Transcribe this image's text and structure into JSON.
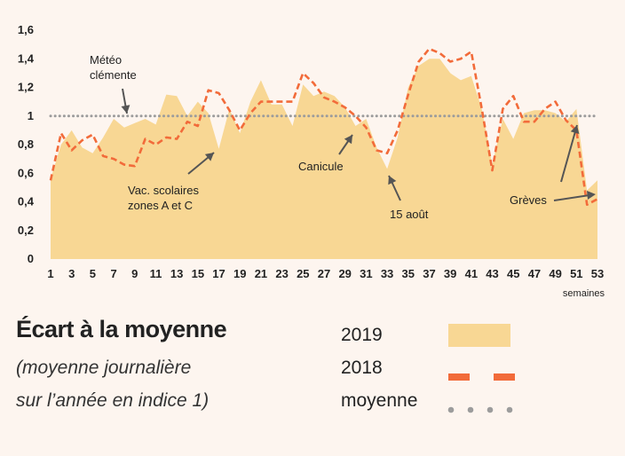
{
  "chart_data": {
    "type": "area",
    "xlabel": "semaines",
    "ylabel": "",
    "xlim": [
      1,
      53
    ],
    "ylim": [
      0,
      1.6
    ],
    "xticks": [
      "1",
      "3",
      "5",
      "7",
      "9",
      "11",
      "13",
      "15",
      "17",
      "19",
      "21",
      "23",
      "25",
      "27",
      "29",
      "31",
      "33",
      "35",
      "37",
      "39",
      "41",
      "43",
      "45",
      "47",
      "49",
      "51",
      "53"
    ],
    "yticks": [
      "0",
      "0,2",
      "0,4",
      "0,6",
      "0,8",
      "1",
      "1,2",
      "1,4",
      "1,6"
    ],
    "grid": false,
    "series": [
      {
        "name": "2019",
        "kind": "area",
        "color": "#f8d794",
        "x": [
          1,
          2,
          3,
          4,
          5,
          6,
          7,
          8,
          9,
          10,
          11,
          12,
          13,
          14,
          15,
          16,
          17,
          18,
          19,
          20,
          21,
          22,
          23,
          24,
          25,
          26,
          27,
          28,
          29,
          30,
          31,
          32,
          33,
          34,
          35,
          36,
          37,
          38,
          39,
          40,
          41,
          42,
          43,
          44,
          45,
          46,
          47,
          48,
          49,
          50,
          51,
          52,
          53
        ],
        "values": [
          0.56,
          0.8,
          0.9,
          0.78,
          0.74,
          0.85,
          0.98,
          0.92,
          0.95,
          0.98,
          0.94,
          1.15,
          1.14,
          1.0,
          1.1,
          1.02,
          0.77,
          1.05,
          0.88,
          1.1,
          1.25,
          1.08,
          1.08,
          0.93,
          1.22,
          1.14,
          1.17,
          1.14,
          1.06,
          0.93,
          0.98,
          0.78,
          0.63,
          0.85,
          1.2,
          1.35,
          1.4,
          1.4,
          1.3,
          1.25,
          1.28,
          1.05,
          0.66,
          0.98,
          0.84,
          1.02,
          1.04,
          1.04,
          1.02,
          0.96,
          1.05,
          0.48,
          0.55
        ]
      },
      {
        "name": "2018",
        "kind": "line",
        "style": "dashed",
        "color": "#f26b3a",
        "x": [
          1,
          2,
          3,
          4,
          5,
          6,
          7,
          8,
          9,
          10,
          11,
          12,
          13,
          14,
          15,
          16,
          17,
          18,
          19,
          20,
          21,
          22,
          23,
          24,
          25,
          26,
          27,
          28,
          29,
          30,
          31,
          32,
          33,
          34,
          35,
          36,
          37,
          38,
          39,
          40,
          41,
          42,
          43,
          44,
          45,
          46,
          47,
          48,
          49,
          50,
          51,
          52,
          53
        ],
        "values": [
          0.55,
          0.88,
          0.76,
          0.83,
          0.87,
          0.72,
          0.7,
          0.66,
          0.65,
          0.84,
          0.8,
          0.85,
          0.84,
          0.96,
          0.93,
          1.18,
          1.16,
          1.04,
          0.9,
          1.02,
          1.1,
          1.1,
          1.1,
          1.1,
          1.3,
          1.23,
          1.13,
          1.1,
          1.06,
          1.0,
          0.92,
          0.76,
          0.74,
          0.9,
          1.15,
          1.38,
          1.47,
          1.44,
          1.38,
          1.4,
          1.45,
          1.05,
          0.62,
          1.05,
          1.14,
          0.96,
          0.96,
          1.05,
          1.1,
          0.97,
          0.9,
          0.38,
          0.42
        ]
      },
      {
        "name": "moyenne",
        "kind": "reference",
        "style": "dotted",
        "color": "#9c9c9c",
        "value": 1
      }
    ],
    "annotations": [
      {
        "id": "meteo",
        "lines": [
          "Météo",
          "clémente"
        ],
        "target_x": 8,
        "target_y": 1.0
      },
      {
        "id": "vac",
        "lines": [
          "Vac. scolaires",
          "zones A et C"
        ],
        "target_x": 17,
        "target_y": 0.77
      },
      {
        "id": "canicule",
        "lines": [
          "Canicule"
        ],
        "target_x": 30,
        "target_y": 0.93
      },
      {
        "id": "aout",
        "lines": [
          "15 août"
        ],
        "target_x": 33,
        "target_y": 0.63
      },
      {
        "id": "greves",
        "lines": [
          "Grèves"
        ],
        "target_x": 51,
        "target_y": 0.96
      }
    ]
  },
  "legend": {
    "title": "Écart à la moyenne",
    "subtitle_line1": "(moyenne journalière",
    "subtitle_line2": "sur l’année en indice 1)",
    "label_2019": "2019",
    "label_2018": "2018",
    "label_moyenne": "moyenne",
    "color_2019": "#f8d794",
    "color_2018": "#f26b3a",
    "color_moyenne": "#9c9c9c"
  }
}
